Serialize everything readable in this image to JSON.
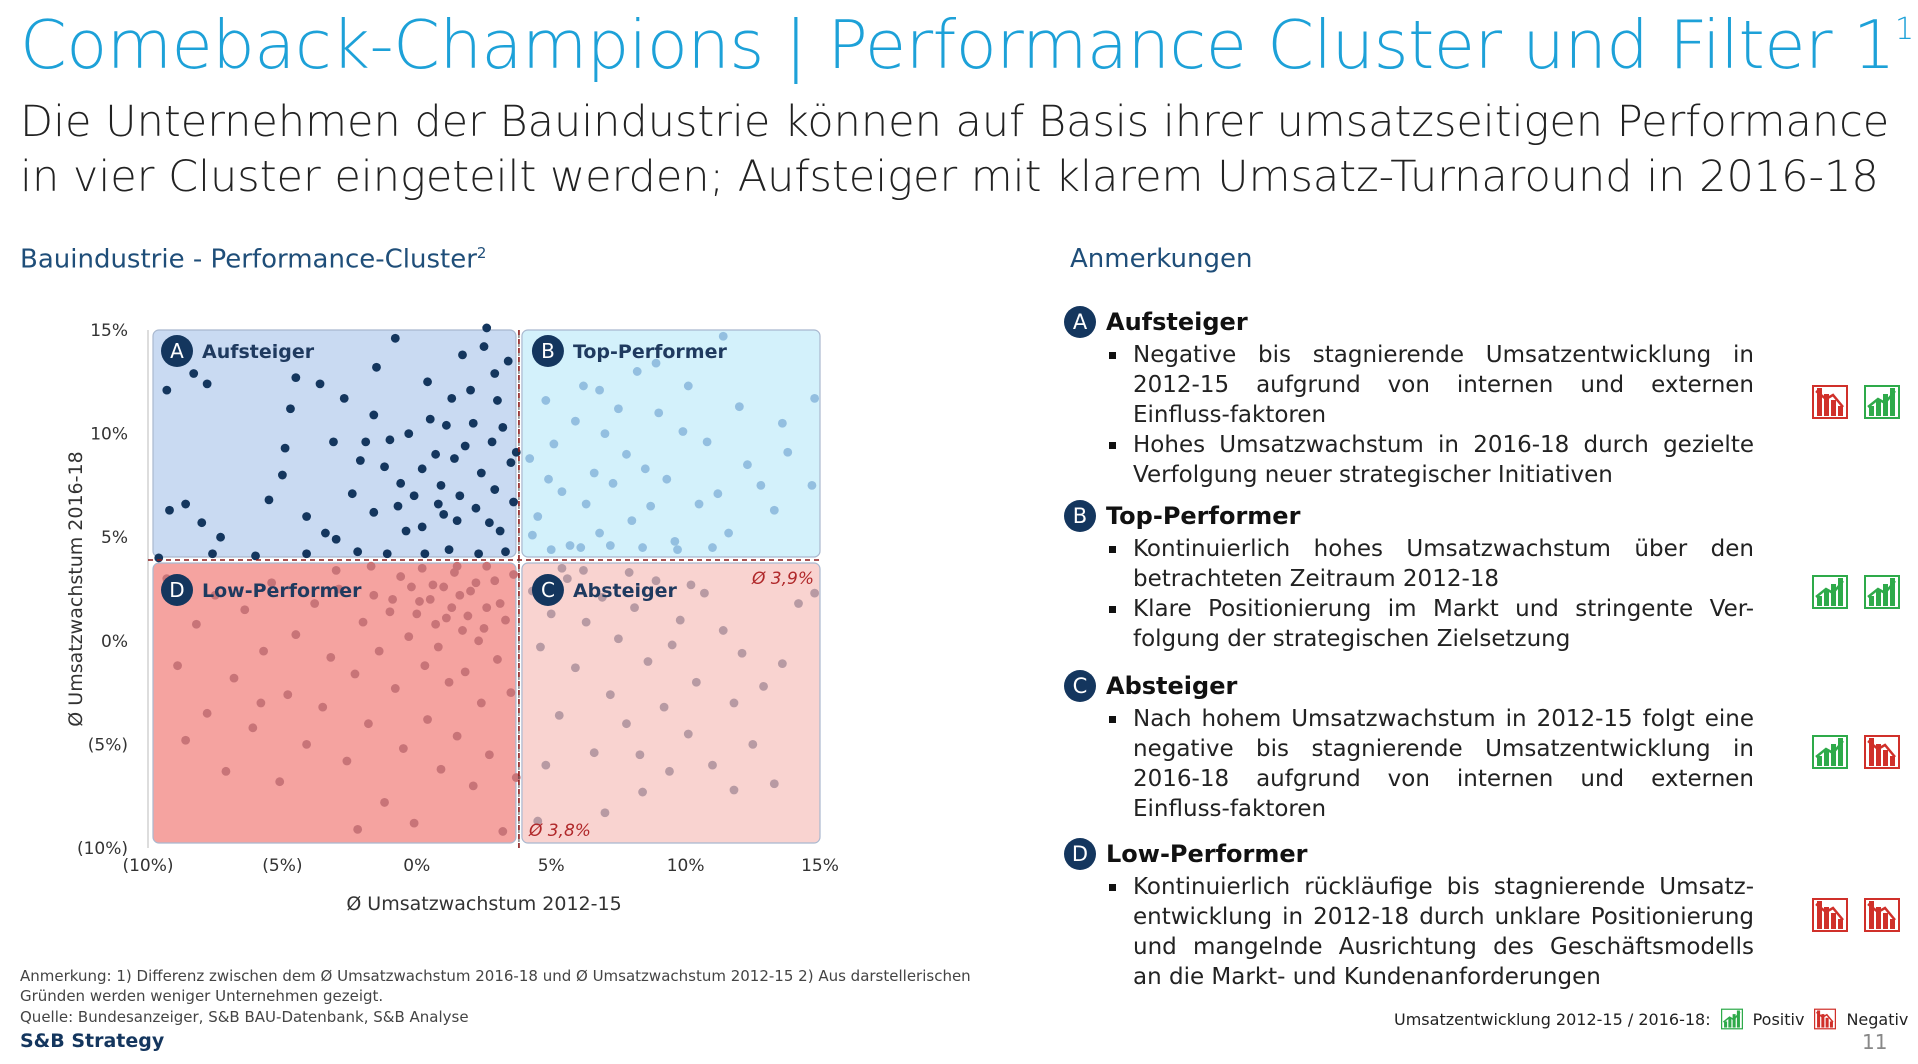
{
  "header": {
    "title": "Comeback-Champions | Performance Cluster und Filter 1",
    "title_sup": "1",
    "subtitle": "Die Unternehmen der Bauindustrie können auf Basis ihrer umsatzseitigen Performance in vier Cluster eingeteilt werden; Aufsteiger mit klarem Umsatz-Turnaround in 2016-18"
  },
  "chart_heading": {
    "text": "Bauindustrie - Performance-Cluster",
    "sup": "2"
  },
  "notes_heading": "Anmerkungen",
  "colors": {
    "accent": "#1da1d8",
    "navy": "#14365e",
    "quad_A": "#c9daf2",
    "quad_B": "#d3f1fb",
    "quad_C": "#f9d3d0",
    "quad_D": "#f5a3a0",
    "dot_A": "#14365e",
    "dot_B": "#93bfe0",
    "dot_C": "#b89aa3",
    "dot_D": "#c87478",
    "positive": "#2eaa4a",
    "negative": "#d0302a"
  },
  "chart_data": {
    "type": "scatter",
    "xlabel": "Ø Umsatzwachstum 2012-15",
    "ylabel": "Ø Umsatzwachstum 2016-18",
    "xlim": [
      -10,
      15
    ],
    "ylim": [
      -10,
      15
    ],
    "x_ticks": [
      "(10%)",
      "(5%)",
      "0%",
      "5%",
      "10%",
      "15%"
    ],
    "y_ticks": [
      "15%",
      "10%",
      "5%",
      "0%",
      "(5%)",
      "(10%)"
    ],
    "x_tick_values": [
      -10,
      -5,
      0,
      5,
      10,
      15
    ],
    "y_tick_values": [
      15,
      10,
      5,
      0,
      -5,
      -10
    ],
    "x_mean": 3.8,
    "y_mean": 3.9,
    "x_mean_label": "Ø 3,8%",
    "y_mean_label": "Ø 3,9%",
    "quadrants": [
      {
        "id": "A",
        "label": "Aufsteiger"
      },
      {
        "id": "B",
        "label": "Top-Performer"
      },
      {
        "id": "C",
        "label": "Absteiger"
      },
      {
        "id": "D",
        "label": "Low-Performer"
      }
    ],
    "series": [
      {
        "name": "Aufsteiger",
        "points": [
          [
            -9.3,
            12.1
          ],
          [
            -8.3,
            12.9
          ],
          [
            -7.8,
            12.4
          ],
          [
            -9.2,
            6.3
          ],
          [
            -8.6,
            6.6
          ],
          [
            -8.0,
            5.7
          ],
          [
            -7.3,
            5.0
          ],
          [
            -7.6,
            4.2
          ],
          [
            -9.6,
            4.0
          ],
          [
            -5.5,
            6.8
          ],
          [
            -5.0,
            8.0
          ],
          [
            -4.7,
            11.2
          ],
          [
            -4.9,
            9.3
          ],
          [
            -4.5,
            12.7
          ],
          [
            -4.1,
            4.2
          ],
          [
            -4.1,
            6.0
          ],
          [
            -3.6,
            12.4
          ],
          [
            -3.4,
            5.2
          ],
          [
            -3.1,
            9.6
          ],
          [
            -3.0,
            4.9
          ],
          [
            -2.7,
            11.7
          ],
          [
            -2.4,
            7.1
          ],
          [
            -2.1,
            8.7
          ],
          [
            -1.9,
            9.6
          ],
          [
            -1.6,
            6.2
          ],
          [
            -1.6,
            10.9
          ],
          [
            -1.2,
            8.4
          ],
          [
            -1.0,
            9.7
          ],
          [
            -0.8,
            14.6
          ],
          [
            -0.6,
            7.6
          ],
          [
            -0.4,
            5.3
          ],
          [
            -0.3,
            10.0
          ],
          [
            -0.1,
            7.0
          ],
          [
            0.2,
            5.5
          ],
          [
            0.2,
            8.3
          ],
          [
            0.4,
            12.5
          ],
          [
            0.5,
            10.7
          ],
          [
            0.7,
            9.0
          ],
          [
            0.8,
            6.6
          ],
          [
            0.9,
            7.5
          ],
          [
            1.1,
            10.4
          ],
          [
            1.3,
            11.7
          ],
          [
            1.4,
            8.8
          ],
          [
            1.5,
            5.8
          ],
          [
            1.6,
            7.0
          ],
          [
            1.8,
            9.4
          ],
          [
            2.0,
            12.1
          ],
          [
            2.1,
            10.5
          ],
          [
            2.2,
            6.4
          ],
          [
            2.4,
            8.1
          ],
          [
            2.5,
            14.2
          ],
          [
            2.6,
            15.1
          ],
          [
            2.8,
            9.6
          ],
          [
            2.9,
            7.3
          ],
          [
            3.0,
            11.6
          ],
          [
            3.1,
            5.3
          ],
          [
            3.2,
            10.3
          ],
          [
            3.4,
            13.5
          ],
          [
            3.5,
            8.6
          ],
          [
            3.6,
            6.7
          ],
          [
            3.7,
            9.1
          ],
          [
            3.3,
            4.3
          ],
          [
            2.3,
            4.2
          ],
          [
            1.2,
            4.4
          ],
          [
            0.3,
            4.2
          ],
          [
            -1.1,
            4.2
          ],
          [
            -2.2,
            4.3
          ],
          [
            -6.0,
            4.1
          ],
          [
            -1.5,
            13.2
          ],
          [
            1.7,
            13.8
          ],
          [
            2.9,
            12.9
          ],
          [
            -0.7,
            6.5
          ],
          [
            1.0,
            6.1
          ],
          [
            2.7,
            5.7
          ]
        ]
      },
      {
        "name": "Top-Performer",
        "points": [
          [
            4.2,
            8.8
          ],
          [
            4.5,
            6.0
          ],
          [
            4.8,
            11.6
          ],
          [
            5.1,
            9.5
          ],
          [
            5.4,
            7.2
          ],
          [
            5.7,
            4.6
          ],
          [
            5.9,
            10.6
          ],
          [
            6.2,
            12.3
          ],
          [
            6.3,
            6.6
          ],
          [
            6.6,
            8.1
          ],
          [
            6.8,
            5.2
          ],
          [
            7.0,
            10.0
          ],
          [
            7.3,
            7.6
          ],
          [
            7.5,
            11.2
          ],
          [
            7.8,
            9.0
          ],
          [
            8.0,
            5.8
          ],
          [
            8.2,
            13.0
          ],
          [
            8.5,
            8.3
          ],
          [
            8.7,
            6.5
          ],
          [
            9.0,
            11.0
          ],
          [
            9.3,
            7.8
          ],
          [
            9.6,
            4.8
          ],
          [
            9.9,
            10.1
          ],
          [
            10.1,
            12.3
          ],
          [
            10.5,
            6.6
          ],
          [
            10.8,
            9.6
          ],
          [
            11.2,
            7.1
          ],
          [
            11.6,
            5.2
          ],
          [
            12.0,
            11.3
          ],
          [
            12.3,
            8.5
          ],
          [
            12.8,
            7.5
          ],
          [
            13.3,
            6.3
          ],
          [
            13.8,
            9.1
          ],
          [
            14.7,
            7.5
          ],
          [
            14.8,
            11.7
          ],
          [
            5.0,
            4.4
          ],
          [
            6.1,
            4.5
          ],
          [
            7.2,
            4.6
          ],
          [
            8.4,
            4.5
          ],
          [
            9.7,
            4.4
          ],
          [
            11.0,
            4.5
          ],
          [
            4.3,
            5.1
          ],
          [
            4.9,
            7.8
          ],
          [
            6.8,
            12.1
          ],
          [
            8.9,
            13.4
          ],
          [
            11.4,
            14.7
          ],
          [
            13.6,
            10.5
          ]
        ]
      },
      {
        "name": "Absteiger",
        "points": [
          [
            4.3,
            2.4
          ],
          [
            4.6,
            -0.3
          ],
          [
            5.0,
            1.3
          ],
          [
            5.3,
            -3.6
          ],
          [
            5.6,
            3.0
          ],
          [
            5.9,
            -1.3
          ],
          [
            6.3,
            0.9
          ],
          [
            6.6,
            -5.4
          ],
          [
            6.9,
            2.1
          ],
          [
            7.2,
            -2.6
          ],
          [
            7.5,
            0.1
          ],
          [
            7.8,
            -4.0
          ],
          [
            8.1,
            1.6
          ],
          [
            8.4,
            -7.3
          ],
          [
            8.6,
            -1.0
          ],
          [
            8.9,
            2.9
          ],
          [
            9.2,
            -3.2
          ],
          [
            9.5,
            -0.2
          ],
          [
            9.8,
            1.0
          ],
          [
            10.1,
            -4.5
          ],
          [
            10.4,
            -2.0
          ],
          [
            10.7,
            2.3
          ],
          [
            11.0,
            -6.0
          ],
          [
            11.4,
            0.5
          ],
          [
            11.8,
            -3.0
          ],
          [
            12.1,
            -0.6
          ],
          [
            12.5,
            -5.0
          ],
          [
            12.9,
            -2.2
          ],
          [
            13.3,
            -6.9
          ],
          [
            13.6,
            -1.1
          ],
          [
            14.2,
            1.8
          ],
          [
            14.8,
            2.3
          ],
          [
            4.5,
            -8.7
          ],
          [
            5.4,
            3.5
          ],
          [
            7.0,
            -8.3
          ],
          [
            9.4,
            -6.3
          ],
          [
            11.8,
            -7.2
          ],
          [
            6.2,
            3.4
          ],
          [
            8.3,
            -5.5
          ],
          [
            10.2,
            2.7
          ],
          [
            4.8,
            -6.0
          ],
          [
            7.9,
            3.3
          ]
        ]
      },
      {
        "name": "Low-Performer",
        "points": [
          [
            -9.3,
            3.0
          ],
          [
            -8.9,
            -1.2
          ],
          [
            -8.6,
            -4.8
          ],
          [
            -8.2,
            0.8
          ],
          [
            -7.8,
            -3.5
          ],
          [
            -7.5,
            2.2
          ],
          [
            -7.1,
            -6.3
          ],
          [
            -6.8,
            -1.8
          ],
          [
            -6.4,
            1.5
          ],
          [
            -6.1,
            -4.2
          ],
          [
            -5.7,
            -0.5
          ],
          [
            -5.4,
            2.8
          ],
          [
            -5.1,
            -6.8
          ],
          [
            -4.8,
            -2.6
          ],
          [
            -4.5,
            0.3
          ],
          [
            -4.1,
            -5.0
          ],
          [
            -3.8,
            1.8
          ],
          [
            -3.5,
            -3.2
          ],
          [
            -3.2,
            -0.8
          ],
          [
            -2.9,
            2.5
          ],
          [
            -2.6,
            -5.8
          ],
          [
            -2.3,
            -1.6
          ],
          [
            -2.0,
            0.9
          ],
          [
            -1.8,
            -4.0
          ],
          [
            -1.6,
            2.2
          ],
          [
            -1.4,
            -0.5
          ],
          [
            -1.2,
            -7.8
          ],
          [
            -1.0,
            1.4
          ],
          [
            -0.8,
            -2.3
          ],
          [
            -0.6,
            3.1
          ],
          [
            -0.5,
            -5.2
          ],
          [
            -0.3,
            0.2
          ],
          [
            -0.1,
            -8.8
          ],
          [
            0.1,
            1.9
          ],
          [
            0.3,
            -1.2
          ],
          [
            0.4,
            -3.8
          ],
          [
            0.6,
            2.7
          ],
          [
            0.8,
            -0.3
          ],
          [
            0.9,
            -6.2
          ],
          [
            1.1,
            1.1
          ],
          [
            1.2,
            -2.0
          ],
          [
            1.4,
            3.3
          ],
          [
            1.5,
            -4.6
          ],
          [
            1.7,
            0.5
          ],
          [
            1.8,
            -1.5
          ],
          [
            2.0,
            2.4
          ],
          [
            2.1,
            -7.0
          ],
          [
            2.3,
            0.0
          ],
          [
            2.4,
            -3.0
          ],
          [
            2.6,
            1.6
          ],
          [
            2.7,
            -5.5
          ],
          [
            2.9,
            2.9
          ],
          [
            3.0,
            -0.9
          ],
          [
            3.2,
            -9.2
          ],
          [
            3.3,
            1.0
          ],
          [
            3.5,
            -2.5
          ],
          [
            3.6,
            3.2
          ],
          [
            3.7,
            -6.6
          ],
          [
            0.5,
            2.0
          ],
          [
            1.0,
            2.6
          ],
          [
            1.6,
            2.2
          ],
          [
            2.2,
            2.8
          ],
          [
            -0.2,
            2.6
          ],
          [
            -0.9,
            2.0
          ],
          [
            0.0,
            1.3
          ],
          [
            0.7,
            0.8
          ],
          [
            1.3,
            1.6
          ],
          [
            1.9,
            1.2
          ],
          [
            2.5,
            0.6
          ],
          [
            3.1,
            1.8
          ],
          [
            -2.2,
            -9.1
          ],
          [
            -5.8,
            -3.0
          ],
          [
            -3.0,
            3.4
          ],
          [
            -1.7,
            3.6
          ],
          [
            0.2,
            3.5
          ],
          [
            1.5,
            3.6
          ],
          [
            2.6,
            3.6
          ]
        ]
      }
    ]
  },
  "notes": [
    {
      "letter": "A",
      "title": "Aufsteiger",
      "bullets": [
        "Negative bis stagnierende Umsatzentwicklung in 2012-15 aufgrund von internen und externen Einfluss-faktoren",
        "Hohes Umsatzwachstum in 2016-18 durch gezielte Verfolgung neuer strategischer Initiativen"
      ],
      "icons": [
        "negative",
        "positive"
      ]
    },
    {
      "letter": "B",
      "title": "Top-Performer",
      "bullets": [
        "Kontinuierlich hohes Umsatzwachstum über den betrachteten Zeitraum 2012-18",
        "Klare Positionierung im Markt und stringente Ver-folgung der strategischen Zielsetzung"
      ],
      "icons": [
        "positive",
        "positive"
      ]
    },
    {
      "letter": "C",
      "title": "Absteiger",
      "bullets": [
        "Nach hohem Umsatzwachstum in 2012-15 folgt eine negative bis stagnierende Umsatzentwicklung in 2016-18 aufgrund von internen und externen Einfluss-faktoren"
      ],
      "icons": [
        "positive",
        "negative"
      ]
    },
    {
      "letter": "D",
      "title": "Low-Performer",
      "bullets": [
        "Kontinuierlich rückläufige bis stagnierende Umsatz-entwicklung in 2012-18 durch unklare Positionierung und mangelnde Ausrichtung des Geschäftsmodells an die Markt- und Kundenanforderungen"
      ],
      "icons": [
        "negative",
        "negative"
      ]
    }
  ],
  "footer": {
    "note": "Anmerkung: 1) Differenz zwischen dem Ø Umsatzwachstum 2016-18 und Ø Umsatzwachstum 2012-15  2) Aus darstellerischen Gründen werden weniger Unternehmen gezeigt.",
    "source": "Quelle: Bundesanzeiger, S&B BAU-Datenbank, S&B Analyse",
    "logo": "S&B Strategy",
    "legend_label": "Umsatzentwicklung 2012-15 / 2016-18:",
    "legend_positive": "Positiv",
    "legend_negative": "Negativ",
    "page_number": "11"
  }
}
